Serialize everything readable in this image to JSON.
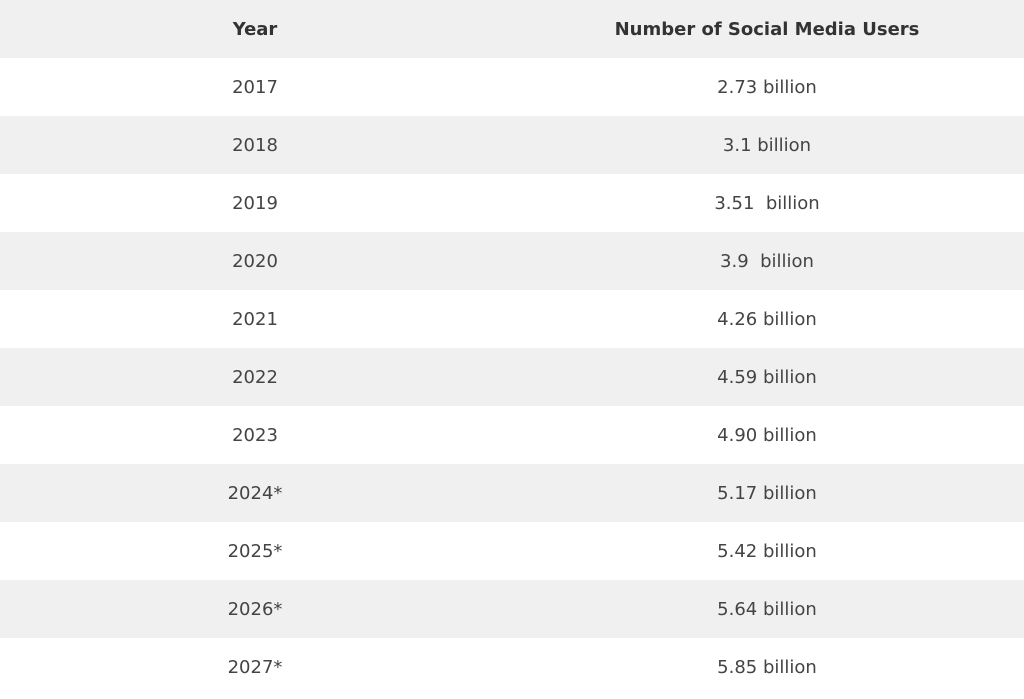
{
  "table": {
    "header": [
      "Year",
      "Number of Social Media Users"
    ],
    "rows": [
      [
        "2017",
        "2.73 billion"
      ],
      [
        "2018",
        "3.1 billion"
      ],
      [
        "2019",
        "3.51  billion"
      ],
      [
        "2020",
        "3.9  billion"
      ],
      [
        "2021",
        "4.26 billion"
      ],
      [
        "2022",
        "4.59 billion"
      ],
      [
        "2023",
        "4.90 billion"
      ],
      [
        "2024*",
        "5.17 billion"
      ],
      [
        "2025*",
        "5.42 billion"
      ],
      [
        "2026*",
        "5.64 billion"
      ],
      [
        "2027*",
        "5.85 billion"
      ]
    ]
  }
}
